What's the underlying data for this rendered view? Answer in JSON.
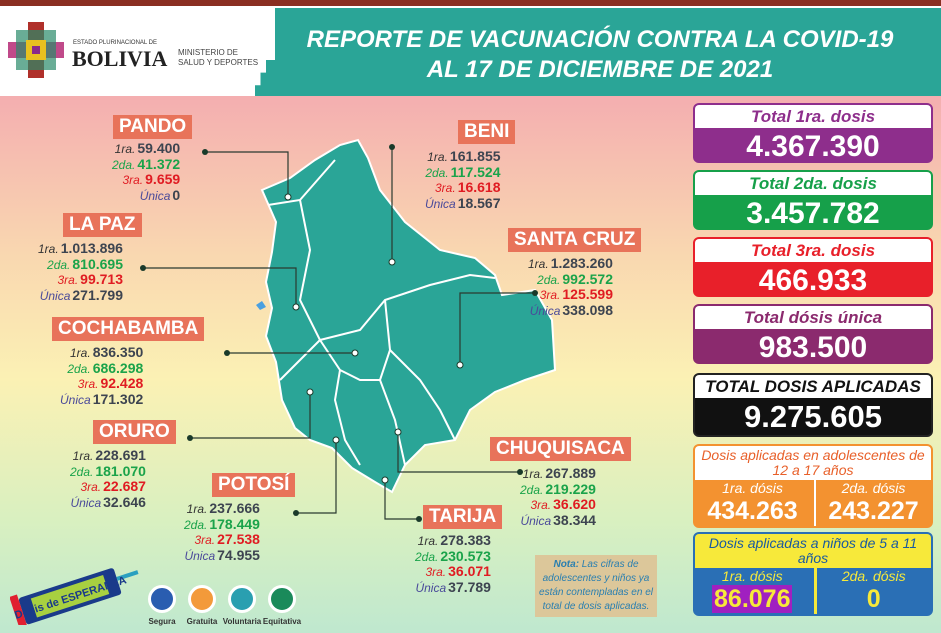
{
  "header": {
    "title": "REPORTE DE VACUNACIÓN CONTRA LA COVID-19",
    "subtitle": "AL 17 DE DICIEMBRE DE 2021",
    "gov_small": "ESTADO PLURINACIONAL DE",
    "gov_big": "BOLIVIA",
    "ministry_line1": "MINISTERIO DE",
    "ministry_line2": "SALUD Y DEPORTES"
  },
  "dose_labels": {
    "d1": "1ra.",
    "d2": "2da.",
    "d3": "3ra.",
    "u": "Única"
  },
  "departments": [
    {
      "name": "PANDO",
      "d1": "59.400",
      "d2": "41.372",
      "d3": "9.659",
      "u": "0"
    },
    {
      "name": "LA PAZ",
      "d1": "1.013.896",
      "d2": "810.695",
      "d3": "99.713",
      "u": "271.799"
    },
    {
      "name": "COCHABAMBA",
      "d1": "836.350",
      "d2": "686.298",
      "d3": "92.428",
      "u": "171.302"
    },
    {
      "name": "ORURO",
      "d1": "228.691",
      "d2": "181.070",
      "d3": "22.687",
      "u": "32.646"
    },
    {
      "name": "POTOSÍ",
      "d1": "237.666",
      "d2": "178.449",
      "d3": "27.538",
      "u": "74.955"
    },
    {
      "name": "BENI",
      "d1": "161.855",
      "d2": "117.524",
      "d3": "16.618",
      "u": "18.567"
    },
    {
      "name": "SANTA CRUZ",
      "d1": "1.283.260",
      "d2": "992.572",
      "d3": "125.599",
      "u": "338.098"
    },
    {
      "name": "CHUQUISACA",
      "d1": "267.889",
      "d2": "219.229",
      "d3": "36.620",
      "u": "38.344"
    },
    {
      "name": "TARIJA",
      "d1": "278.383",
      "d2": "230.573",
      "d3": "36.071",
      "u": "37.789"
    }
  ],
  "totals": [
    {
      "label": "Total 1ra. dosis",
      "value": "4.367.390",
      "color": "#8e2e8c"
    },
    {
      "label": "Total 2da. dosis",
      "value": "3.457.782",
      "color": "#16a04a"
    },
    {
      "label": "Total 3ra. dosis",
      "value": "466.933",
      "color": "#e8202a"
    },
    {
      "label": "Total dósis única",
      "value": "983.500",
      "color": "#8b2a6e"
    }
  ],
  "grand_total": {
    "label": "TOTAL DOSIS APLICADAS",
    "value": "9.275.605"
  },
  "adolescents": {
    "title": "Dosis aplicadas en adolescentes de 12 a 17 años",
    "d1_label": "1ra. dósis",
    "d1": "434.263",
    "d2_label": "2da. dósis",
    "d2": "243.227",
    "color": "#f39230"
  },
  "children": {
    "title": "Dosis aplicadas a niños de 5 a 11 años",
    "d1_label": "1ra. dósis",
    "d1": "86.076",
    "d2_label": "2da. dósis",
    "d2": "0",
    "color": "#2a6fb5",
    "header_color": "#f7e93a"
  },
  "note": {
    "bold": "Nota:",
    "text": " Las cifras de adolescentes y niños ya están contempladas en el total de dosis aplicadas."
  },
  "campaign": {
    "logo_text": "Dosis de ESPERANZA"
  },
  "values": [
    {
      "label": "Segura",
      "icon": "shield-check-icon",
      "color": "#2a5db0"
    },
    {
      "label": "Gratuita",
      "icon": "smile-icon",
      "color": "#f39a3a"
    },
    {
      "label": "Voluntaria",
      "icon": "raised-hand-icon",
      "color": "#2a9fb0"
    },
    {
      "label": "Equitativa",
      "icon": "scales-icon",
      "color": "#1a8a5a"
    }
  ]
}
